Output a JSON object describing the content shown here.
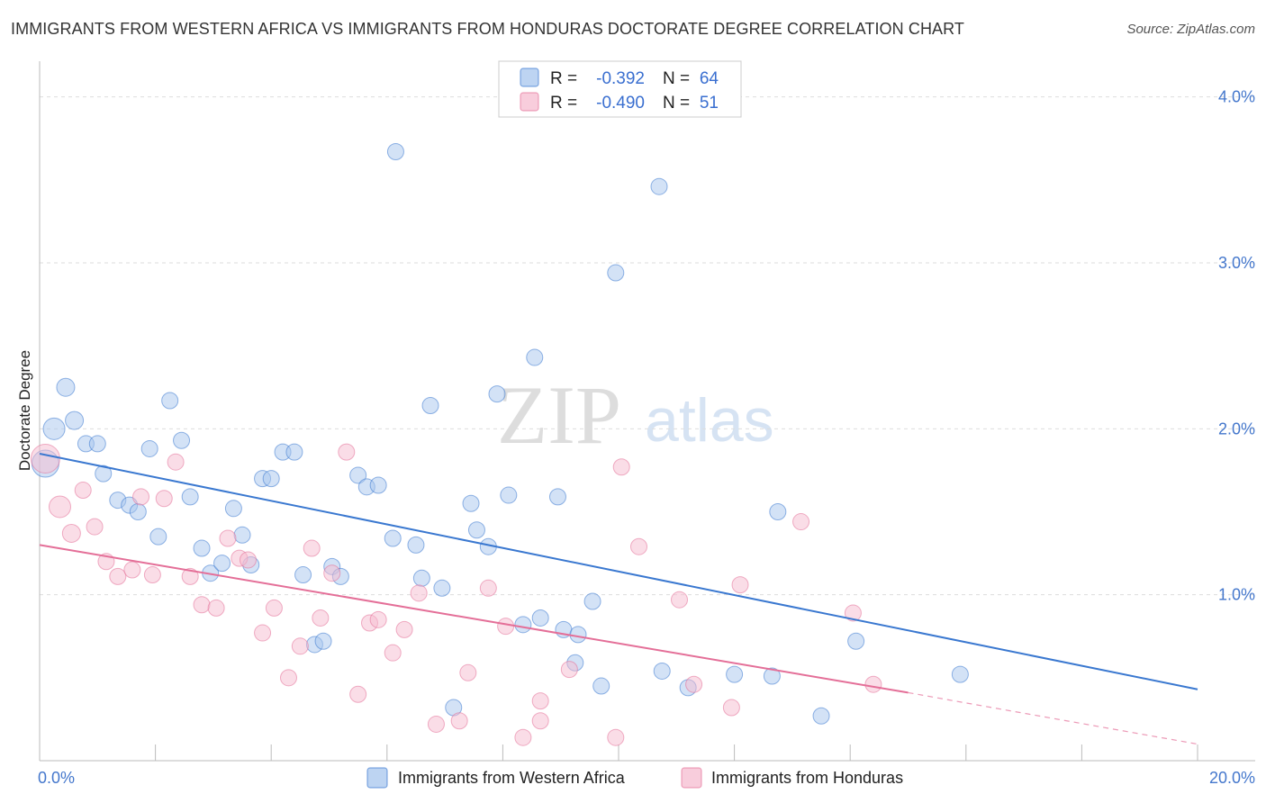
{
  "title": "IMMIGRANTS FROM WESTERN AFRICA VS IMMIGRANTS FROM HONDURAS DOCTORATE DEGREE CORRELATION CHART",
  "source": "Source: ZipAtlas.com",
  "watermark": {
    "zip": "ZIP",
    "atlas": "atlas"
  },
  "legend": {
    "rows": [
      {
        "r_label": "R =",
        "r_value": "-0.392",
        "n_label": "N =",
        "n_value": "64"
      },
      {
        "r_label": "R =",
        "r_value": "-0.490",
        "n_label": "N =",
        "n_value": "51"
      }
    ]
  },
  "chart_data": {
    "type": "scatter",
    "title": "IMMIGRANTS FROM WESTERN AFRICA VS IMMIGRANTS FROM HONDURAS DOCTORATE DEGREE CORRELATION CHART",
    "xlabel": "",
    "ylabel": "Doctorate Degree",
    "xlim": [
      0,
      20
    ],
    "ylim": [
      0,
      4.15
    ],
    "x_tick_labels": [
      {
        "value": 0,
        "label": "0.0%"
      },
      {
        "value": 20,
        "label": "20.0%"
      }
    ],
    "y_ticks": [
      {
        "value": 1,
        "label": "1.0%"
      },
      {
        "value": 2,
        "label": "2.0%"
      },
      {
        "value": 3,
        "label": "3.0%"
      },
      {
        "value": 4,
        "label": "4.0%"
      }
    ],
    "series": [
      {
        "name": "Immigrants from Western Africa",
        "color": "#a7c6ee",
        "line_color": "#3a78d0",
        "R": -0.392,
        "N": 64,
        "trend": {
          "x0": 0,
          "y0": 1.85,
          "x1": 20,
          "y1": 0.43
        },
        "points": [
          [
            0.1,
            1.79,
            15
          ],
          [
            0.25,
            2.0,
            12
          ],
          [
            0.45,
            2.25,
            10
          ],
          [
            0.6,
            2.05,
            10
          ],
          [
            0.8,
            1.91,
            9
          ],
          [
            1.0,
            1.91,
            9
          ],
          [
            1.1,
            1.73,
            9
          ],
          [
            1.35,
            1.57,
            9
          ],
          [
            1.55,
            1.54,
            9
          ],
          [
            1.7,
            1.5,
            9
          ],
          [
            1.9,
            1.88,
            9
          ],
          [
            2.05,
            1.35,
            9
          ],
          [
            2.25,
            2.17,
            9
          ],
          [
            2.45,
            1.93,
            9
          ],
          [
            2.6,
            1.59,
            9
          ],
          [
            2.8,
            1.28,
            9
          ],
          [
            2.95,
            1.13,
            9
          ],
          [
            3.15,
            1.19,
            9
          ],
          [
            3.35,
            1.52,
            9
          ],
          [
            3.5,
            1.36,
            9
          ],
          [
            3.65,
            1.18,
            9
          ],
          [
            3.85,
            1.7,
            9
          ],
          [
            4.0,
            1.7,
            9
          ],
          [
            4.2,
            1.86,
            9
          ],
          [
            4.4,
            1.86,
            9
          ],
          [
            4.55,
            1.12,
            9
          ],
          [
            4.75,
            0.7,
            9
          ],
          [
            4.9,
            0.72,
            9
          ],
          [
            5.05,
            1.17,
            9
          ],
          [
            5.2,
            1.11,
            9
          ],
          [
            5.5,
            1.72,
            9
          ],
          [
            5.65,
            1.65,
            9
          ],
          [
            5.85,
            1.66,
            9
          ],
          [
            6.1,
            1.34,
            9
          ],
          [
            6.15,
            3.67,
            9
          ],
          [
            6.5,
            1.3,
            9
          ],
          [
            6.6,
            1.1,
            9
          ],
          [
            6.75,
            2.14,
            9
          ],
          [
            6.95,
            1.04,
            9
          ],
          [
            7.15,
            0.32,
            9
          ],
          [
            7.45,
            1.55,
            9
          ],
          [
            7.55,
            1.39,
            9
          ],
          [
            7.75,
            1.29,
            9
          ],
          [
            7.9,
            2.21,
            9
          ],
          [
            8.1,
            1.6,
            9
          ],
          [
            8.35,
            0.82,
            9
          ],
          [
            8.55,
            2.43,
            9
          ],
          [
            8.65,
            0.86,
            9
          ],
          [
            8.95,
            1.59,
            9
          ],
          [
            9.05,
            0.79,
            9
          ],
          [
            9.25,
            0.59,
            9
          ],
          [
            9.3,
            0.76,
            9
          ],
          [
            9.55,
            0.96,
            9
          ],
          [
            9.7,
            0.45,
            9
          ],
          [
            9.95,
            2.94,
            9
          ],
          [
            10.7,
            3.46,
            9
          ],
          [
            10.75,
            0.54,
            9
          ],
          [
            11.2,
            0.44,
            9
          ],
          [
            12.0,
            0.52,
            9
          ],
          [
            12.65,
            0.51,
            9
          ],
          [
            12.75,
            1.5,
            9
          ],
          [
            13.5,
            0.27,
            9
          ],
          [
            14.1,
            0.72,
            9
          ],
          [
            15.9,
            0.52,
            9
          ]
        ]
      },
      {
        "name": "Immigrants from Honduras",
        "color": "#f6bcd0",
        "line_color": "#e46f98",
        "R": -0.49,
        "N": 51,
        "trend": {
          "x0": 0,
          "y0": 1.3,
          "x1": 15,
          "y1": 0.41,
          "dash_x1": 20,
          "dash_y1": 0.1
        },
        "points": [
          [
            0.1,
            1.82,
            16
          ],
          [
            0.35,
            1.53,
            12
          ],
          [
            0.55,
            1.37,
            10
          ],
          [
            0.75,
            1.63,
            9
          ],
          [
            0.95,
            1.41,
            9
          ],
          [
            1.15,
            1.2,
            9
          ],
          [
            1.35,
            1.11,
            9
          ],
          [
            1.6,
            1.15,
            9
          ],
          [
            1.75,
            1.59,
            9
          ],
          [
            1.95,
            1.12,
            9
          ],
          [
            2.15,
            1.58,
            9
          ],
          [
            2.35,
            1.8,
            9
          ],
          [
            2.6,
            1.11,
            9
          ],
          [
            2.8,
            0.94,
            9
          ],
          [
            3.05,
            0.92,
            9
          ],
          [
            3.25,
            1.34,
            9
          ],
          [
            3.45,
            1.22,
            9
          ],
          [
            3.6,
            1.21,
            9
          ],
          [
            3.85,
            0.77,
            9
          ],
          [
            4.05,
            0.92,
            9
          ],
          [
            4.3,
            0.5,
            9
          ],
          [
            4.5,
            0.69,
            9
          ],
          [
            4.7,
            1.28,
            9
          ],
          [
            4.85,
            0.86,
            9
          ],
          [
            5.05,
            1.13,
            9
          ],
          [
            5.3,
            1.86,
            9
          ],
          [
            5.5,
            0.4,
            9
          ],
          [
            5.7,
            0.83,
            9
          ],
          [
            5.85,
            0.85,
            9
          ],
          [
            6.1,
            0.65,
            9
          ],
          [
            6.3,
            0.79,
            9
          ],
          [
            6.55,
            1.01,
            9
          ],
          [
            6.85,
            0.22,
            9
          ],
          [
            7.25,
            0.24,
            9
          ],
          [
            7.4,
            0.53,
            9
          ],
          [
            7.75,
            1.04,
            9
          ],
          [
            8.05,
            0.81,
            9
          ],
          [
            8.35,
            0.14,
            9
          ],
          [
            8.65,
            0.36,
            9
          ],
          [
            8.65,
            0.24,
            9
          ],
          [
            9.15,
            0.55,
            9
          ],
          [
            9.95,
            0.14,
            9
          ],
          [
            10.05,
            1.77,
            9
          ],
          [
            10.35,
            1.29,
            9
          ],
          [
            11.05,
            0.97,
            9
          ],
          [
            11.3,
            0.46,
            9
          ],
          [
            11.95,
            0.32,
            9
          ],
          [
            12.1,
            1.06,
            9
          ],
          [
            13.15,
            1.44,
            9
          ],
          [
            14.05,
            0.89,
            9
          ],
          [
            14.4,
            0.46,
            9
          ]
        ]
      }
    ]
  }
}
